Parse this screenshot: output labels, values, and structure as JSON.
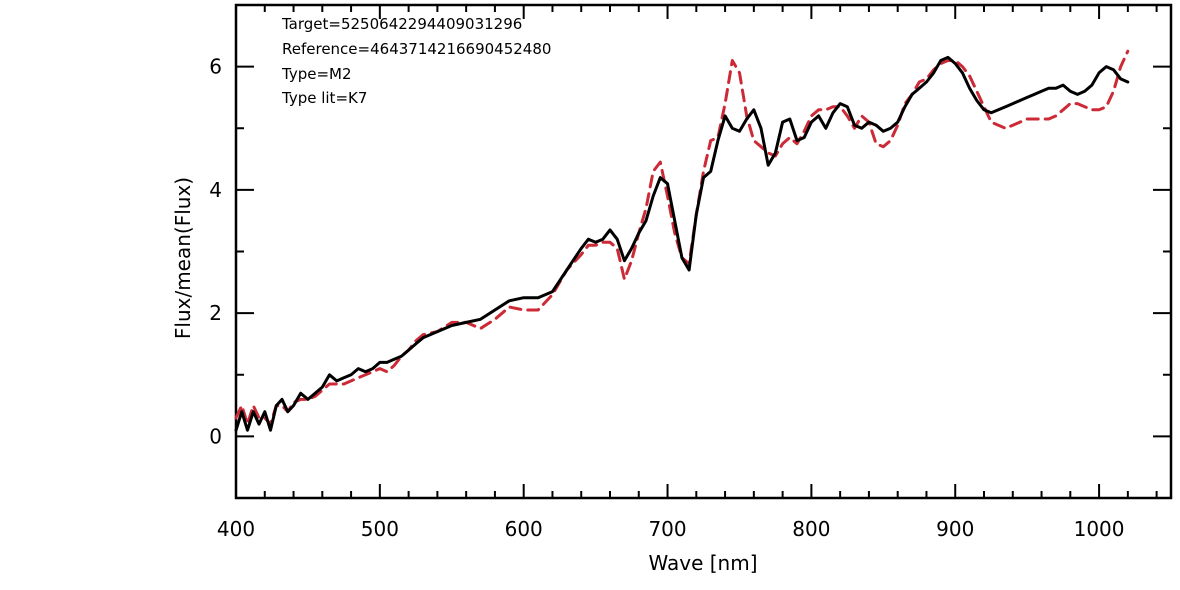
{
  "chart_data": {
    "type": "line",
    "title": "",
    "xlabel": "Wave [nm]",
    "ylabel": "Flux/mean(Flux)",
    "xlim": [
      400,
      1050
    ],
    "ylim": [
      -1,
      7
    ],
    "x_ticks": [
      400,
      500,
      600,
      700,
      800,
      900,
      1000
    ],
    "y_ticks": [
      0,
      2,
      4,
      6
    ],
    "grid": false,
    "annotations": [
      "Target=5250642294409031296",
      "Reference=4643714216690452480",
      "Type=M2",
      "Type lit=K7"
    ],
    "series": [
      {
        "color": "#000000",
        "style": "solid",
        "x": [
          400,
          404,
          408,
          412,
          416,
          420,
          424,
          428,
          432,
          436,
          440,
          445,
          450,
          455,
          460,
          465,
          470,
          475,
          480,
          485,
          490,
          495,
          500,
          505,
          510,
          515,
          520,
          525,
          530,
          540,
          550,
          560,
          570,
          580,
          590,
          600,
          610,
          620,
          630,
          640,
          645,
          650,
          655,
          660,
          665,
          670,
          675,
          680,
          685,
          690,
          695,
          700,
          705,
          710,
          715,
          720,
          725,
          730,
          735,
          740,
          745,
          750,
          755,
          760,
          765,
          770,
          775,
          780,
          785,
          790,
          795,
          800,
          805,
          810,
          815,
          820,
          825,
          830,
          835,
          840,
          845,
          850,
          855,
          860,
          865,
          870,
          875,
          880,
          885,
          890,
          895,
          900,
          905,
          910,
          915,
          920,
          925,
          930,
          935,
          940,
          945,
          950,
          955,
          960,
          965,
          970,
          975,
          980,
          985,
          990,
          995,
          1000,
          1005,
          1010,
          1015,
          1020
        ],
        "values": [
          0.1,
          0.4,
          0.1,
          0.4,
          0.2,
          0.4,
          0.1,
          0.5,
          0.6,
          0.4,
          0.5,
          0.7,
          0.6,
          0.7,
          0.8,
          1.0,
          0.9,
          0.95,
          1.0,
          1.1,
          1.05,
          1.1,
          1.2,
          1.2,
          1.25,
          1.3,
          1.4,
          1.5,
          1.6,
          1.7,
          1.8,
          1.85,
          1.9,
          2.05,
          2.2,
          2.25,
          2.25,
          2.35,
          2.7,
          3.05,
          3.2,
          3.15,
          3.2,
          3.35,
          3.2,
          2.85,
          3.05,
          3.3,
          3.5,
          3.9,
          4.2,
          4.1,
          3.5,
          2.9,
          2.7,
          3.6,
          4.2,
          4.3,
          4.8,
          5.2,
          5.0,
          4.95,
          5.15,
          5.3,
          5.0,
          4.4,
          4.6,
          5.1,
          5.15,
          4.8,
          4.85,
          5.1,
          5.2,
          5.0,
          5.25,
          5.4,
          5.35,
          5.05,
          5.0,
          5.1,
          5.05,
          4.95,
          5.0,
          5.1,
          5.35,
          5.55,
          5.65,
          5.75,
          5.9,
          6.1,
          6.15,
          6.05,
          5.9,
          5.65,
          5.45,
          5.3,
          5.25,
          5.3,
          5.35,
          5.4,
          5.45,
          5.5,
          5.55,
          5.6,
          5.65,
          5.65,
          5.7,
          5.6,
          5.55,
          5.6,
          5.7,
          5.9,
          6.0,
          5.95,
          5.8,
          5.75
        ]
      },
      {
        "color": "#cc2a36",
        "style": "dashed",
        "x": [
          400,
          404,
          408,
          412,
          416,
          420,
          424,
          428,
          432,
          436,
          440,
          445,
          450,
          455,
          460,
          465,
          470,
          475,
          480,
          485,
          490,
          495,
          500,
          505,
          510,
          515,
          520,
          525,
          530,
          540,
          550,
          560,
          570,
          580,
          590,
          600,
          610,
          620,
          630,
          640,
          645,
          650,
          655,
          660,
          665,
          670,
          675,
          680,
          685,
          690,
          695,
          700,
          705,
          710,
          715,
          720,
          725,
          730,
          735,
          740,
          745,
          750,
          755,
          760,
          765,
          770,
          775,
          780,
          785,
          790,
          795,
          800,
          805,
          810,
          815,
          820,
          825,
          830,
          835,
          840,
          845,
          850,
          855,
          860,
          865,
          870,
          875,
          880,
          885,
          890,
          895,
          900,
          905,
          910,
          915,
          920,
          925,
          930,
          935,
          940,
          945,
          950,
          955,
          960,
          965,
          970,
          975,
          980,
          985,
          990,
          995,
          1000,
          1005,
          1010,
          1015,
          1020
        ],
        "values": [
          0.3,
          0.5,
          0.2,
          0.5,
          0.3,
          0.3,
          0.2,
          0.5,
          0.5,
          0.4,
          0.55,
          0.6,
          0.6,
          0.65,
          0.75,
          0.85,
          0.85,
          0.85,
          0.9,
          0.95,
          1.0,
          1.05,
          1.1,
          1.05,
          1.15,
          1.3,
          1.4,
          1.55,
          1.65,
          1.7,
          1.85,
          1.85,
          1.75,
          1.9,
          2.1,
          2.05,
          2.05,
          2.3,
          2.7,
          2.95,
          3.1,
          3.1,
          3.15,
          3.15,
          3.05,
          2.55,
          2.85,
          3.3,
          3.7,
          4.3,
          4.45,
          3.9,
          3.3,
          2.9,
          2.8,
          3.6,
          4.3,
          4.8,
          4.85,
          5.4,
          6.1,
          5.9,
          5.2,
          4.8,
          4.7,
          4.6,
          4.55,
          4.75,
          4.85,
          4.75,
          4.95,
          5.2,
          5.3,
          5.3,
          5.35,
          5.35,
          5.2,
          5.0,
          5.2,
          5.1,
          4.75,
          4.7,
          4.8,
          5.05,
          5.4,
          5.55,
          5.75,
          5.8,
          5.95,
          6.05,
          6.1,
          6.1,
          6.0,
          5.85,
          5.6,
          5.35,
          5.1,
          5.05,
          5.0,
          5.05,
          5.1,
          5.15,
          5.15,
          5.15,
          5.15,
          5.2,
          5.3,
          5.4,
          5.4,
          5.35,
          5.3,
          5.3,
          5.35,
          5.6,
          6.0,
          6.25
        ]
      }
    ]
  }
}
